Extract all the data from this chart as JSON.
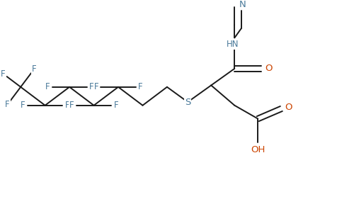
{
  "bg_color": "#ffffff",
  "line_color": "#1a1a1a",
  "label_color_F": "#4a7a9a",
  "label_color_S": "#4a7a9a",
  "label_color_N": "#4a7a9a",
  "label_color_O": "#cc4400",
  "font_size": 8.5,
  "line_width": 1.4,
  "figsize": [
    4.76,
    2.88
  ],
  "dpi": 100,
  "xlim": [
    0,
    10
  ],
  "ylim": [
    0,
    6
  ]
}
